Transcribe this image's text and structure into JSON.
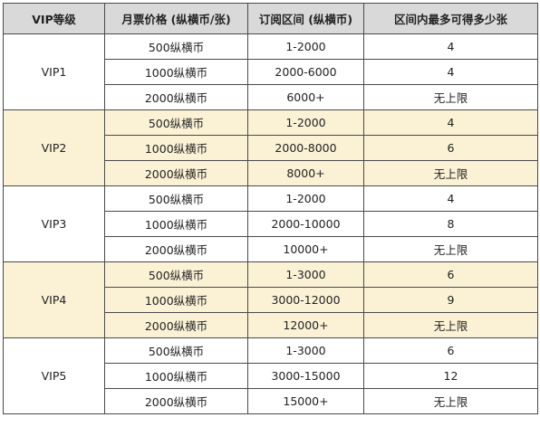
{
  "headers": {
    "level": "VIP等级",
    "price": "月票价格 (纵横币/张)",
    "range": "订阅区间 (纵横币)",
    "max": "区间内最多可得多少张"
  },
  "groups": [
    {
      "vip": "VIP1",
      "shaded": false,
      "rows": [
        {
          "price": "500纵横币",
          "range": "1-2000",
          "max": "4"
        },
        {
          "price": "1000纵横币",
          "range": "2000-6000",
          "max": "4"
        },
        {
          "price": "2000纵横币",
          "range": "6000+",
          "max": "无上限"
        }
      ]
    },
    {
      "vip": "VIP2",
      "shaded": true,
      "rows": [
        {
          "price": "500纵横币",
          "range": "1-2000",
          "max": "4"
        },
        {
          "price": "1000纵横币",
          "range": "2000-8000",
          "max": "6"
        },
        {
          "price": "2000纵横币",
          "range": "8000+",
          "max": "无上限"
        }
      ]
    },
    {
      "vip": "VIP3",
      "shaded": false,
      "rows": [
        {
          "price": "500纵横币",
          "range": "1-2000",
          "max": "4"
        },
        {
          "price": "1000纵横币",
          "range": "2000-10000",
          "max": "8"
        },
        {
          "price": "2000纵横币",
          "range": "10000+",
          "max": "无上限"
        }
      ]
    },
    {
      "vip": "VIP4",
      "shaded": true,
      "rows": [
        {
          "price": "500纵横币",
          "range": "1-3000",
          "max": "6"
        },
        {
          "price": "1000纵横币",
          "range": "3000-12000",
          "max": "9"
        },
        {
          "price": "2000纵横币",
          "range": "12000+",
          "max": "无上限"
        }
      ]
    },
    {
      "vip": "VIP5",
      "shaded": false,
      "rows": [
        {
          "price": "500纵横币",
          "range": "1-3000",
          "max": "6"
        },
        {
          "price": "1000纵横币",
          "range": "3000-15000",
          "max": "12"
        },
        {
          "price": "2000纵横币",
          "range": "15000+",
          "max": "无上限"
        }
      ]
    }
  ],
  "colors": {
    "header_bg": "#d9d9d9",
    "shaded_bg": "#fbf2d6",
    "border": "#4a4a4a"
  }
}
